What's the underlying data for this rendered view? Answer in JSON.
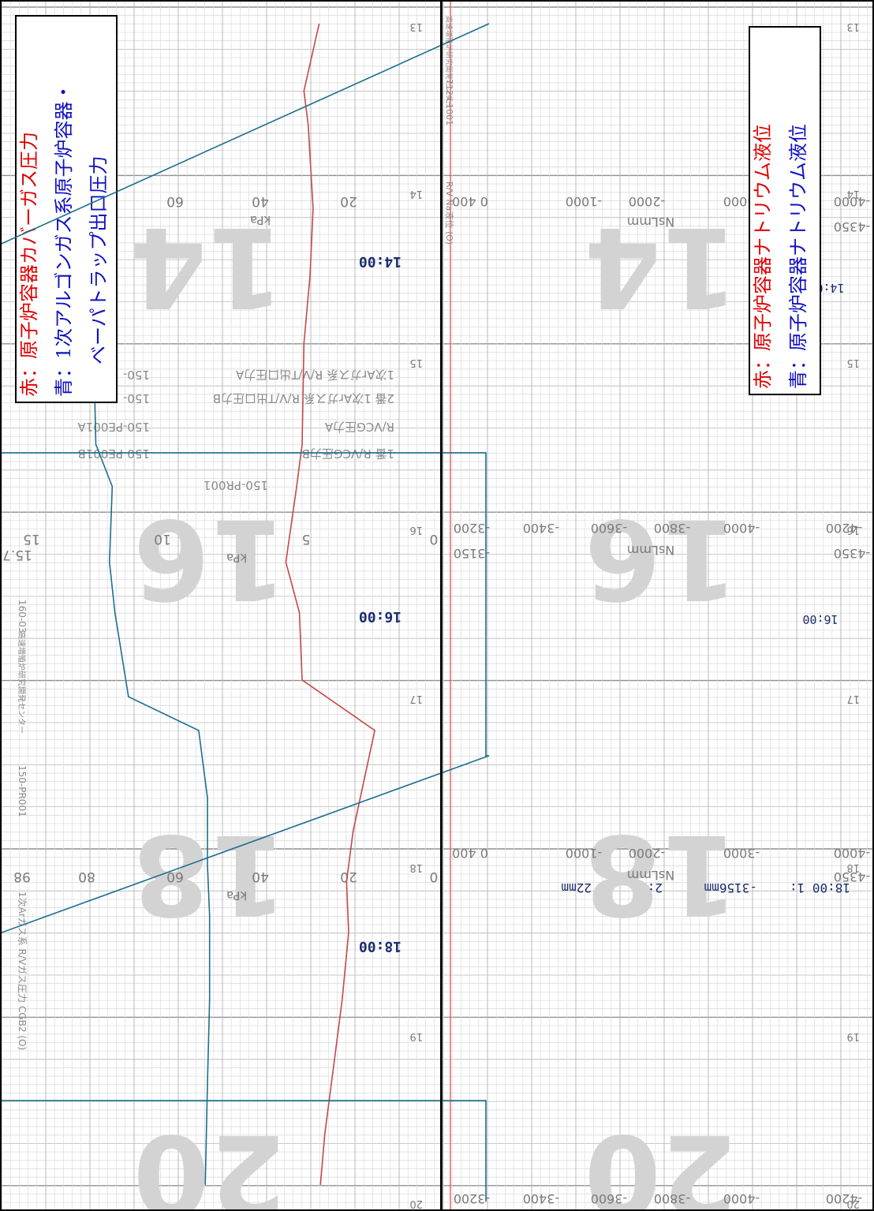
{
  "colors": {
    "grid_fine": "#dcdcdc",
    "grid_mid": "#b8b8b8",
    "grid_major": "#8f8f8f",
    "print": "#7a7a7a",
    "watermark": "#d3d3d3",
    "red_trace": "#c4484a",
    "blue_trace": "#1a6f8e",
    "time_stamp": "#1c2d70",
    "legend_red": "#e00000",
    "legend_blue": "#1010c0",
    "frame": "#000000"
  },
  "left_panel": {
    "legend": {
      "red_line": "赤：原子炉容器カバーガス圧力",
      "blue_line1": "青：1次アルゴンガス系原子炉容器・",
      "blue_line2": "ベーパトラップ出口圧力"
    },
    "block_numbers": [
      "14",
      "16",
      "18",
      "20"
    ],
    "hour_marks": [
      "13",
      "14",
      "15",
      "16",
      "17",
      "18",
      "19",
      "20"
    ],
    "time_stamps": [
      "14:00",
      "16:00",
      "18:00"
    ],
    "scale_14": {
      "ticks": [
        "60",
        "40",
        "20"
      ],
      "unit": "kPa",
      "edge": "8"
    },
    "scale_16": {
      "ticks": [
        "15.7",
        "15",
        "10",
        "5",
        "0"
      ],
      "unit": "kPa"
    },
    "scale_18": {
      "ticks": [
        "98",
        "80",
        "60",
        "40",
        "20",
        "0"
      ],
      "unit": "kPa"
    },
    "printed_labels": [
      "1次Arガス系 R/V/T出口圧力A",
      "2番 1次Arガス系 R/V/T出口圧力B",
      "R/VCG圧力A",
      "1番 R/VCG圧力B",
      "150-PE001A",
      "150-PE001B",
      "150-PR001",
      "160-03",
      "150-PR001",
      "1次Arガス系 R/Vガス圧力 CGB2 (O)"
    ],
    "tag_edge": "150-",
    "tag_edge2": "150-",
    "edge_note": "高速増殖炉研究開発センター"
  },
  "right_panel": {
    "legend": {
      "red_line": "赤：原子炉容器ナトリウム液位",
      "blue_line": "青：原子炉容器ナトリウム液位"
    },
    "block_numbers": [
      "14",
      "16",
      "18",
      "20"
    ],
    "hour_marks": [
      "13",
      "14",
      "15",
      "16",
      "17",
      "18",
      "19",
      "20"
    ],
    "time_stamps": [
      "14:00",
      "16:00"
    ],
    "scale_14": {
      "ticks": [
        "0 400",
        "-1000",
        "-2000",
        "-3000",
        "-4000",
        "-4350"
      ],
      "unit": "NsLmm"
    },
    "scale_16": {
      "ticks": [
        "-3200",
        "-3400",
        "-3600",
        "-3800",
        "-4000",
        "-4200",
        "-3150",
        "-4350"
      ],
      "unit": "NsLmm"
    },
    "scale_18": {
      "ticks": [
        "0 400",
        "-1000",
        "-2000",
        "-3000",
        "-4000",
        "-4350"
      ],
      "unit": "NsLmm"
    },
    "scale_20": {
      "ticks": [
        "-3200",
        "-3400",
        "-3600",
        "-3800",
        "-4000",
        "-4200"
      ]
    },
    "printout": {
      "time": "18:00 1:",
      "value1": "-3156mm",
      "channel2": "2:",
      "value2": "22mm"
    },
    "edge_labels": [
      "712-L1001",
      "R/V Na液位 (O)"
    ],
    "paper_mark": "高速増殖炉研究開発センター"
  },
  "chart_data": [
    {
      "type": "line",
      "title": "",
      "x_axis": "time",
      "time_ticks": [
        "13",
        "14",
        "15",
        "16",
        "17",
        "18",
        "19",
        "20"
      ],
      "ylabel": "kPa",
      "scale_note": "range changes per block: 0-60/70 kPa at 14h, 0-15.7 kPa at 16h, 0-98 kPa at 18h",
      "series": [
        {
          "name": "原子炉容器カバーガス圧力",
          "color": "red",
          "points": [
            {
              "t": 13.0,
              "v": 19.5
            },
            {
              "t": 13.4,
              "v": 22.0
            },
            {
              "t": 13.6,
              "v": 21.3
            },
            {
              "t": 14.1,
              "v": 20.5
            },
            {
              "t": 14.5,
              "v": 21.0
            },
            {
              "t": 14.9,
              "v": 22.0
            },
            {
              "t": 15.5,
              "v": 22.3
            },
            {
              "t": 15.75,
              "v": 5.2
            },
            {
              "t": 16.2,
              "v": 5.6
            },
            {
              "t": 16.5,
              "v": 5.1
            },
            {
              "t": 16.9,
              "v": 5.0
            },
            {
              "t": 17.2,
              "v": 14.5
            },
            {
              "t": 17.5,
              "v": 17.0
            },
            {
              "t": 17.8,
              "v": 19.5
            },
            {
              "t": 18.1,
              "v": 21.0
            },
            {
              "t": 18.4,
              "v": 20.5
            },
            {
              "t": 18.8,
              "v": 22.0
            },
            {
              "t": 19.2,
              "v": 24.0
            },
            {
              "t": 19.6,
              "v": 26.0
            },
            {
              "t": 19.9,
              "v": 27.0
            }
          ]
        },
        {
          "name": "1次アルゴンガス系原子炉容器・ベーパトラップ出口圧力",
          "color": "blue",
          "points": [
            {
              "t": 13.0,
              "v": 54.5
            },
            {
              "t": 13.5,
              "v": 56.0
            },
            {
              "t": 14.0,
              "v": 57.0
            },
            {
              "t": 14.5,
              "v": 57.0
            },
            {
              "t": 15.0,
              "v": 56.5
            },
            {
              "t": 15.5,
              "v": 56.2
            },
            {
              "t": 15.75,
              "v": 12.0
            },
            {
              "t": 16.2,
              "v": 12.1
            },
            {
              "t": 16.5,
              "v": 11.9
            },
            {
              "t": 17.0,
              "v": 11.4
            },
            {
              "t": 17.2,
              "v": 55.0
            },
            {
              "t": 17.6,
              "v": 53.0
            },
            {
              "t": 18.0,
              "v": 53.0
            },
            {
              "t": 18.3,
              "v": 52.5
            },
            {
              "t": 18.8,
              "v": 52.5
            },
            {
              "t": 19.3,
              "v": 53.0
            },
            {
              "t": 19.9,
              "v": 53.5
            }
          ]
        }
      ]
    },
    {
      "type": "line",
      "title": "",
      "x_axis": "time",
      "time_ticks": [
        "13",
        "14",
        "15",
        "16",
        "17",
        "18",
        "19",
        "20"
      ],
      "ylabel": "NsLmm",
      "scale_note": "blocks at 14h/18h: 400 to -4350 mm; blocks at 16h/20h: -3150 to -4350 mm",
      "series": [
        {
          "name": "原子炉容器ナトリウム液位",
          "color": "red",
          "points": [
            {
              "t": 13.0,
              "v": 420
            },
            {
              "t": 20.0,
              "v": 420
            }
          ]
        },
        {
          "name": "原子炉容器ナトリウム液位",
          "color": "blue",
          "points": [
            {
              "t": 13.0,
              "v": 0
            },
            {
              "t": 15.55,
              "v": 0
            },
            {
              "t": 15.55,
              "v": -3185
            },
            {
              "t": 17.35,
              "v": -3185
            },
            {
              "t": 17.35,
              "v": 0
            },
            {
              "t": 19.4,
              "v": 0
            },
            {
              "t": 19.4,
              "v": -3185
            },
            {
              "t": 20.0,
              "v": -3185
            }
          ]
        }
      ],
      "annotations": [
        "18:00 1: -3156mm 2: 22mm"
      ]
    }
  ]
}
